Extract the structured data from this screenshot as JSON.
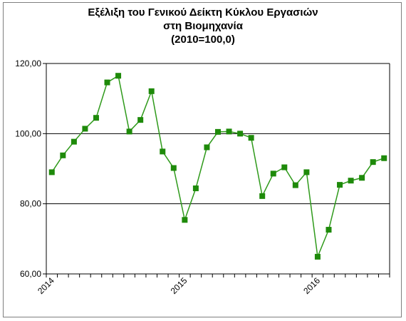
{
  "chart_data": {
    "type": "line",
    "title_lines": [
      "Εξέλιξη του Γενικού Δείκτη Κύκλου Εργασιών",
      "στη Βιομηχανία",
      "(2010=100,0)"
    ],
    "xlabel": "",
    "ylabel": "",
    "ylim": [
      60,
      120
    ],
    "y_ticks": [
      "60,00",
      "80,00",
      "100,00",
      "120,00"
    ],
    "y_tick_values": [
      60,
      80,
      100,
      120
    ],
    "x_tick_labels": [
      {
        "label": "2014",
        "index": 0
      },
      {
        "label": "2015",
        "index": 12
      },
      {
        "label": "2016",
        "index": 24
      }
    ],
    "grid": "horizontal",
    "legend": "none",
    "series": [
      {
        "color": "#2f9a1b",
        "marker_color": "#1e8a0a",
        "values": [
          89.0,
          93.8,
          97.7,
          101.4,
          104.5,
          114.6,
          116.5,
          100.6,
          103.9,
          112.1,
          94.9,
          90.2,
          75.4,
          84.4,
          96.1,
          100.5,
          100.6,
          100.0,
          98.8,
          82.2,
          88.6,
          90.4,
          85.3,
          89.0,
          64.9,
          72.6,
          85.4,
          86.6,
          87.4,
          91.9,
          93.0
        ]
      }
    ]
  }
}
